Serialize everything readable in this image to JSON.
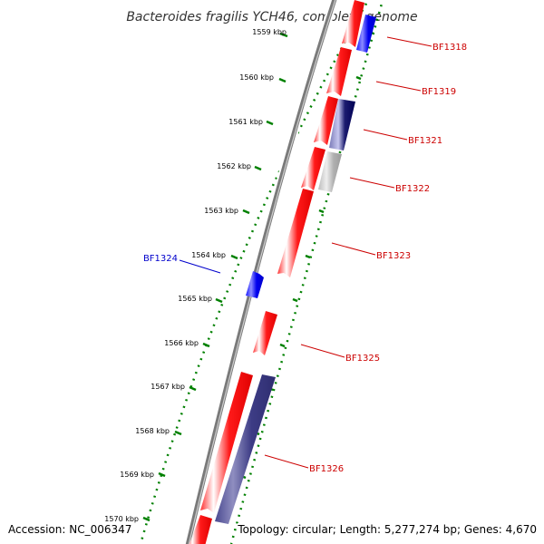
{
  "title": "Bacteroides fragilis YCH46, complete genome",
  "footer": {
    "accession": "Accession: NC_006347",
    "topology": "Topology: circular; Length: 5,277,274 bp; Genes: 4,670"
  },
  "colors": {
    "forward_gene": "#ff0000",
    "reverse_gene_blue": "#0000ee",
    "reverse_gene_navy": "#000066",
    "reverse_gene_slate": "#3d3c85",
    "reverse_gene_grey": "#b3b3b3",
    "backbone": "#888888",
    "tick_track": "#008000",
    "label_forward": "#cc0000",
    "label_reverse": "#0000cc"
  },
  "scale_unit": "kbp",
  "scale_marks": [
    "1559 kbp",
    "1560 kbp",
    "1561 kbp",
    "1562 kbp",
    "1563 kbp",
    "1564 kbp",
    "1565 kbp",
    "1566 kbp",
    "1567 kbp",
    "1568 kbp",
    "1569 kbp",
    "1570 kbp"
  ],
  "gene_labels": [
    {
      "id": "BF1318",
      "strand": "reverse"
    },
    {
      "id": "BF1319",
      "strand": "forward"
    },
    {
      "id": "BF1321",
      "strand": "reverse"
    },
    {
      "id": "BF1322",
      "strand": "reverse"
    },
    {
      "id": "BF1323",
      "strand": "forward"
    },
    {
      "id": "BF1324",
      "strand": "reverse"
    },
    {
      "id": "BF1325",
      "strand": "forward"
    },
    {
      "id": "BF1326",
      "strand": "reverse"
    }
  ]
}
